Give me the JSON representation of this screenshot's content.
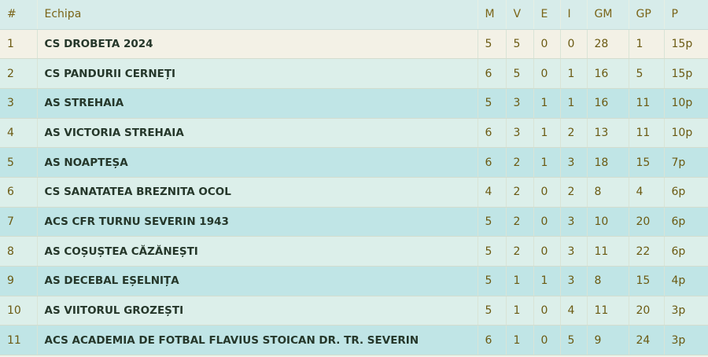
{
  "table": {
    "headers": {
      "pos": "#",
      "team": "Echipa",
      "m": "M",
      "v": "V",
      "e": "E",
      "i": "I",
      "gm": "GM",
      "gp": "GP",
      "p": "P"
    },
    "rows": [
      {
        "pos": "1",
        "team": "CS DROBETA 2024",
        "m": "5",
        "v": "5",
        "e": "0",
        "i": "0",
        "gm": "28",
        "gp": "1",
        "p": "15p"
      },
      {
        "pos": "2",
        "team": "CS PANDURII CERNEȚI",
        "m": "6",
        "v": "5",
        "e": "0",
        "i": "1",
        "gm": "16",
        "gp": "5",
        "p": "15p"
      },
      {
        "pos": "3",
        "team": "AS STREHAIA",
        "m": "5",
        "v": "3",
        "e": "1",
        "i": "1",
        "gm": "16",
        "gp": "11",
        "p": "10p"
      },
      {
        "pos": "4",
        "team": "AS VICTORIA STREHAIA",
        "m": "6",
        "v": "3",
        "e": "1",
        "i": "2",
        "gm": "13",
        "gp": "11",
        "p": "10p"
      },
      {
        "pos": "5",
        "team": "AS NOAPTEȘA",
        "m": "6",
        "v": "2",
        "e": "1",
        "i": "3",
        "gm": "18",
        "gp": "15",
        "p": "7p"
      },
      {
        "pos": "6",
        "team": "CS SANATATEA BREZNITA OCOL",
        "m": "4",
        "v": "2",
        "e": "0",
        "i": "2",
        "gm": "8",
        "gp": "4",
        "p": "6p"
      },
      {
        "pos": "7",
        "team": "ACS CFR TURNU SEVERIN 1943",
        "m": "5",
        "v": "2",
        "e": "0",
        "i": "3",
        "gm": "10",
        "gp": "20",
        "p": "6p"
      },
      {
        "pos": "8",
        "team": "AS COȘUȘTEA CĂZĂNEȘTI",
        "m": "5",
        "v": "2",
        "e": "0",
        "i": "3",
        "gm": "11",
        "gp": "22",
        "p": "6p"
      },
      {
        "pos": "9",
        "team": "AS DECEBAL EȘELNIȚA",
        "m": "5",
        "v": "1",
        "e": "1",
        "i": "3",
        "gm": "8",
        "gp": "15",
        "p": "4p"
      },
      {
        "pos": "10",
        "team": "AS VIITORUL GROZEȘTI",
        "m": "5",
        "v": "1",
        "e": "0",
        "i": "4",
        "gm": "11",
        "gp": "20",
        "p": "3p"
      },
      {
        "pos": "11",
        "team": "ACS ACADEMIA DE FOTBAL FLAVIUS STOICAN DR. TR. SEVERIN",
        "m": "6",
        "v": "1",
        "e": "0",
        "i": "5",
        "gm": "9",
        "gp": "24",
        "p": "3p"
      }
    ]
  }
}
